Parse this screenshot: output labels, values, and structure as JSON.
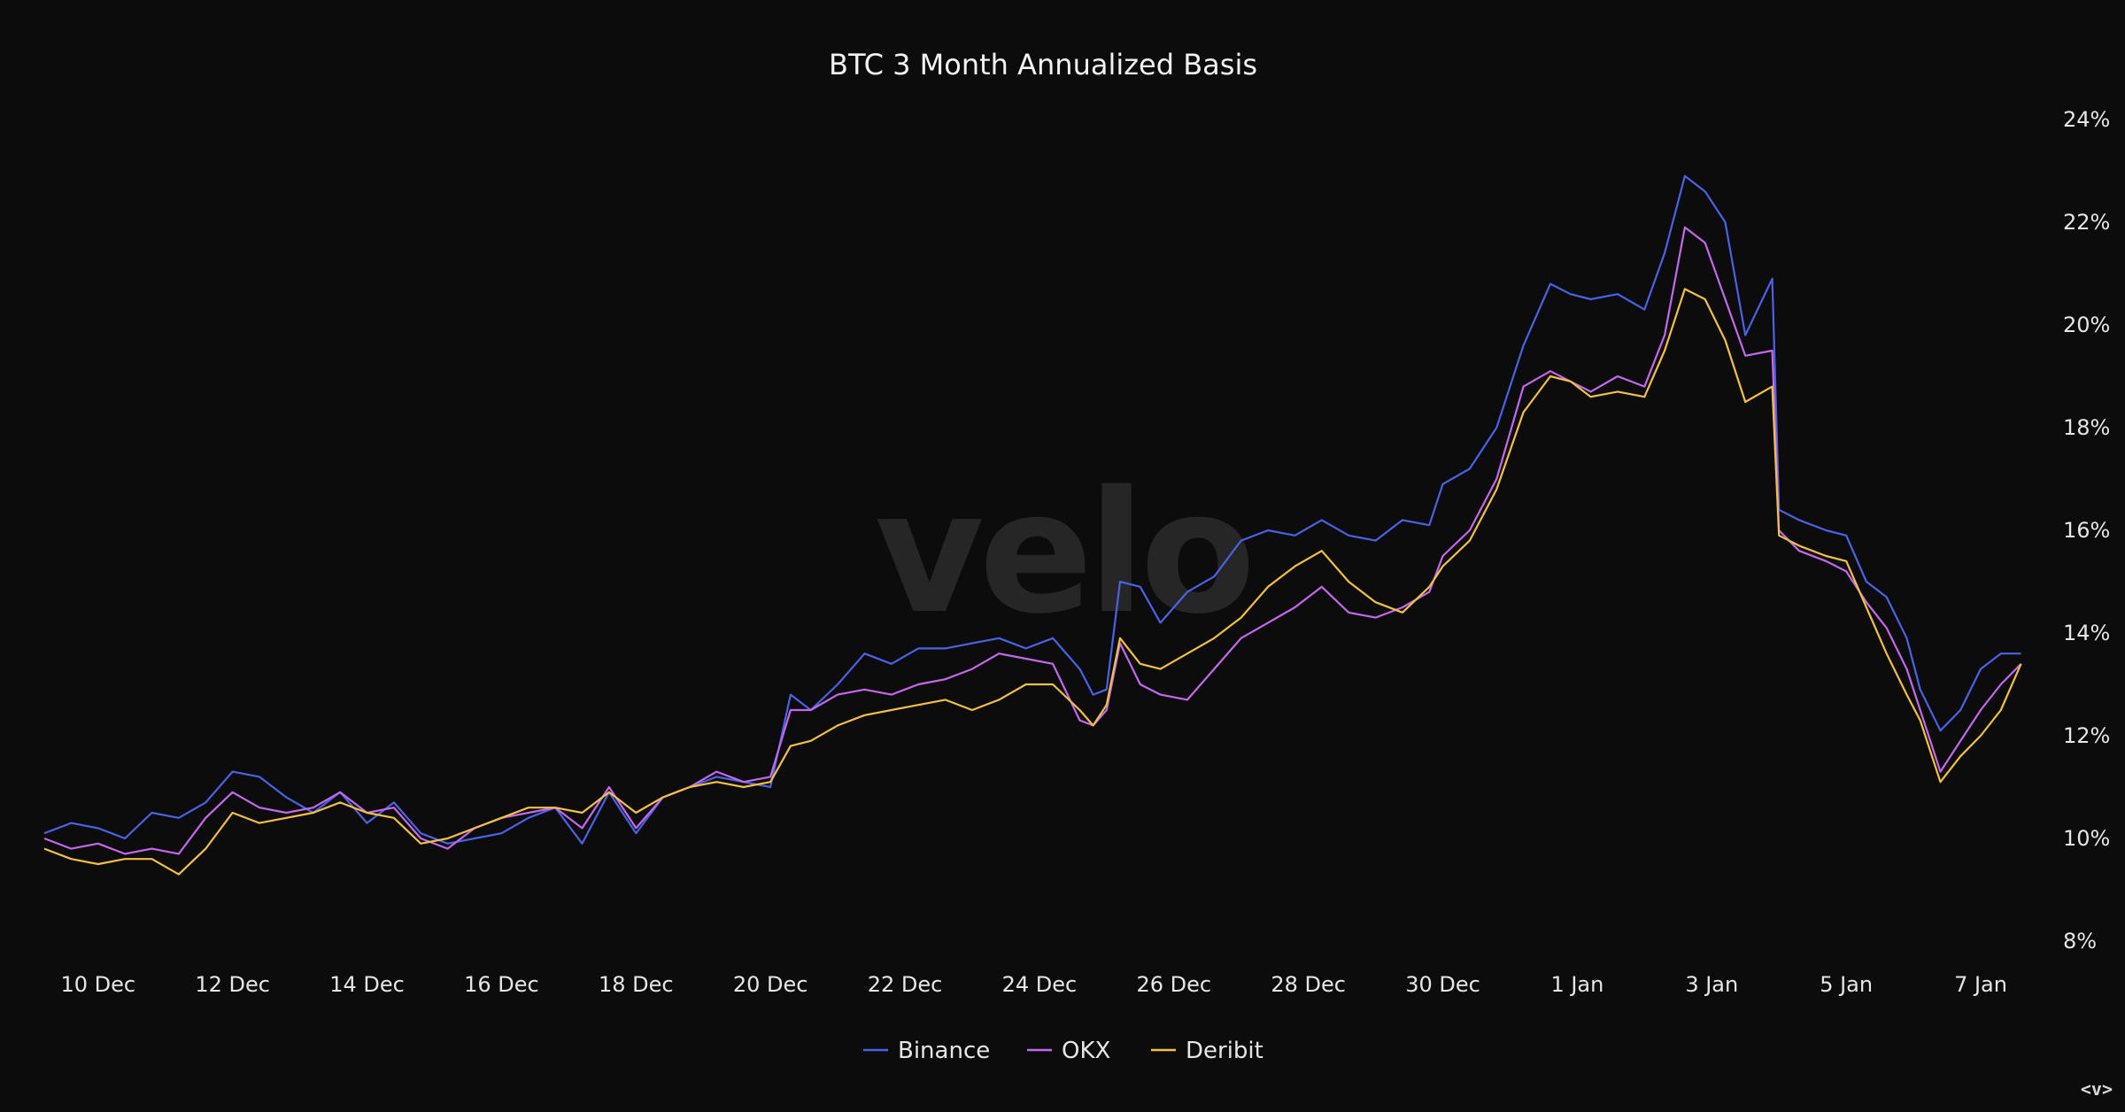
{
  "nav_hint": "<v>",
  "chart_data": {
    "type": "line",
    "title": "BTC 3 Month Annualized Basis",
    "watermark": "velo",
    "xlabel": "",
    "ylabel": "",
    "ylim": [
      8,
      24
    ],
    "yaxis_position": "right",
    "yticks": [
      8,
      10,
      12,
      14,
      16,
      18,
      20,
      22,
      24
    ],
    "ytick_labels": [
      "8%",
      "10%",
      "12%",
      "14%",
      "16%",
      "18%",
      "20%",
      "22%",
      "24%"
    ],
    "xlim": [
      9.2,
      38.5
    ],
    "xticks": [
      10,
      12,
      14,
      16,
      18,
      20,
      22,
      24,
      26,
      28,
      30,
      32,
      34,
      36,
      38
    ],
    "xtick_labels": [
      "10 Dec",
      "12 Dec",
      "14 Dec",
      "16 Dec",
      "18 Dec",
      "20 Dec",
      "22 Dec",
      "24 Dec",
      "26 Dec",
      "28 Dec",
      "30 Dec",
      "1 Jan",
      "3 Jan",
      "5 Jan",
      "7 Jan"
    ],
    "x_unit": "day of December (32 = 1 Jan)",
    "grid": false,
    "legend_position": "bottom-center",
    "series": [
      {
        "name": "Binance",
        "color": "#4a63e6",
        "points": [
          [
            9.2,
            10.1
          ],
          [
            9.6,
            10.3
          ],
          [
            10.0,
            10.2
          ],
          [
            10.4,
            10.0
          ],
          [
            10.8,
            10.5
          ],
          [
            11.2,
            10.4
          ],
          [
            11.6,
            10.7
          ],
          [
            12.0,
            11.3
          ],
          [
            12.4,
            11.2
          ],
          [
            12.8,
            10.8
          ],
          [
            13.2,
            10.5
          ],
          [
            13.6,
            10.9
          ],
          [
            14.0,
            10.3
          ],
          [
            14.4,
            10.7
          ],
          [
            14.8,
            10.1
          ],
          [
            15.2,
            9.9
          ],
          [
            15.6,
            10.0
          ],
          [
            16.0,
            10.1
          ],
          [
            16.4,
            10.4
          ],
          [
            16.8,
            10.6
          ],
          [
            17.2,
            9.9
          ],
          [
            17.6,
            10.9
          ],
          [
            18.0,
            10.1
          ],
          [
            18.4,
            10.8
          ],
          [
            18.8,
            11.0
          ],
          [
            19.2,
            11.2
          ],
          [
            19.6,
            11.1
          ],
          [
            20.0,
            11.0
          ],
          [
            20.3,
            12.8
          ],
          [
            20.6,
            12.5
          ],
          [
            21.0,
            13.0
          ],
          [
            21.4,
            13.6
          ],
          [
            21.8,
            13.4
          ],
          [
            22.2,
            13.7
          ],
          [
            22.6,
            13.7
          ],
          [
            23.0,
            13.8
          ],
          [
            23.4,
            13.9
          ],
          [
            23.8,
            13.7
          ],
          [
            24.2,
            13.9
          ],
          [
            24.6,
            13.3
          ],
          [
            24.8,
            12.8
          ],
          [
            25.0,
            12.9
          ],
          [
            25.2,
            15.0
          ],
          [
            25.5,
            14.9
          ],
          [
            25.8,
            14.2
          ],
          [
            26.2,
            14.8
          ],
          [
            26.6,
            15.1
          ],
          [
            27.0,
            15.8
          ],
          [
            27.4,
            16.0
          ],
          [
            27.8,
            15.9
          ],
          [
            28.2,
            16.2
          ],
          [
            28.6,
            15.9
          ],
          [
            29.0,
            15.8
          ],
          [
            29.4,
            16.2
          ],
          [
            29.8,
            16.1
          ],
          [
            30.0,
            16.9
          ],
          [
            30.4,
            17.2
          ],
          [
            30.8,
            18.0
          ],
          [
            31.2,
            19.6
          ],
          [
            31.6,
            20.8
          ],
          [
            31.9,
            20.6
          ],
          [
            32.2,
            20.5
          ],
          [
            32.6,
            20.6
          ],
          [
            33.0,
            20.3
          ],
          [
            33.3,
            21.4
          ],
          [
            33.6,
            22.9
          ],
          [
            33.9,
            22.6
          ],
          [
            34.2,
            22.0
          ],
          [
            34.5,
            19.8
          ],
          [
            34.9,
            20.9
          ],
          [
            35.0,
            16.4
          ],
          [
            35.3,
            16.2
          ],
          [
            35.7,
            16.0
          ],
          [
            36.0,
            15.9
          ],
          [
            36.3,
            15.0
          ],
          [
            36.6,
            14.7
          ],
          [
            36.9,
            13.9
          ],
          [
            37.1,
            12.9
          ],
          [
            37.4,
            12.1
          ],
          [
            37.7,
            12.5
          ],
          [
            38.0,
            13.3
          ],
          [
            38.3,
            13.6
          ],
          [
            38.6,
            13.6
          ]
        ]
      },
      {
        "name": "OKX",
        "color": "#c468ee",
        "points": [
          [
            9.2,
            10.0
          ],
          [
            9.6,
            9.8
          ],
          [
            10.0,
            9.9
          ],
          [
            10.4,
            9.7
          ],
          [
            10.8,
            9.8
          ],
          [
            11.2,
            9.7
          ],
          [
            11.6,
            10.4
          ],
          [
            12.0,
            10.9
          ],
          [
            12.4,
            10.6
          ],
          [
            12.8,
            10.5
          ],
          [
            13.2,
            10.6
          ],
          [
            13.6,
            10.9
          ],
          [
            14.0,
            10.5
          ],
          [
            14.4,
            10.6
          ],
          [
            14.8,
            10.0
          ],
          [
            15.2,
            9.8
          ],
          [
            15.6,
            10.2
          ],
          [
            16.0,
            10.4
          ],
          [
            16.4,
            10.5
          ],
          [
            16.8,
            10.6
          ],
          [
            17.2,
            10.2
          ],
          [
            17.6,
            11.0
          ],
          [
            18.0,
            10.2
          ],
          [
            18.4,
            10.8
          ],
          [
            18.8,
            11.0
          ],
          [
            19.2,
            11.3
          ],
          [
            19.6,
            11.1
          ],
          [
            20.0,
            11.2
          ],
          [
            20.3,
            12.5
          ],
          [
            20.6,
            12.5
          ],
          [
            21.0,
            12.8
          ],
          [
            21.4,
            12.9
          ],
          [
            21.8,
            12.8
          ],
          [
            22.2,
            13.0
          ],
          [
            22.6,
            13.1
          ],
          [
            23.0,
            13.3
          ],
          [
            23.4,
            13.6
          ],
          [
            23.8,
            13.5
          ],
          [
            24.2,
            13.4
          ],
          [
            24.6,
            12.3
          ],
          [
            24.8,
            12.2
          ],
          [
            25.0,
            12.5
          ],
          [
            25.2,
            13.8
          ],
          [
            25.5,
            13.0
          ],
          [
            25.8,
            12.8
          ],
          [
            26.2,
            12.7
          ],
          [
            26.6,
            13.3
          ],
          [
            27.0,
            13.9
          ],
          [
            27.4,
            14.2
          ],
          [
            27.8,
            14.5
          ],
          [
            28.2,
            14.9
          ],
          [
            28.6,
            14.4
          ],
          [
            29.0,
            14.3
          ],
          [
            29.4,
            14.5
          ],
          [
            29.8,
            14.8
          ],
          [
            30.0,
            15.5
          ],
          [
            30.4,
            16.0
          ],
          [
            30.8,
            17.0
          ],
          [
            31.2,
            18.8
          ],
          [
            31.6,
            19.1
          ],
          [
            31.9,
            18.9
          ],
          [
            32.2,
            18.7
          ],
          [
            32.6,
            19.0
          ],
          [
            33.0,
            18.8
          ],
          [
            33.3,
            19.8
          ],
          [
            33.6,
            21.9
          ],
          [
            33.9,
            21.6
          ],
          [
            34.2,
            20.5
          ],
          [
            34.5,
            19.4
          ],
          [
            34.9,
            19.5
          ],
          [
            35.0,
            16.0
          ],
          [
            35.3,
            15.6
          ],
          [
            35.7,
            15.4
          ],
          [
            36.0,
            15.2
          ],
          [
            36.3,
            14.6
          ],
          [
            36.6,
            14.1
          ],
          [
            36.9,
            13.3
          ],
          [
            37.1,
            12.5
          ],
          [
            37.4,
            11.3
          ],
          [
            37.7,
            11.9
          ],
          [
            38.0,
            12.5
          ],
          [
            38.3,
            13.0
          ],
          [
            38.6,
            13.4
          ]
        ]
      },
      {
        "name": "Deribit",
        "color": "#f2c141",
        "points": [
          [
            9.2,
            9.8
          ],
          [
            9.6,
            9.6
          ],
          [
            10.0,
            9.5
          ],
          [
            10.4,
            9.6
          ],
          [
            10.8,
            9.6
          ],
          [
            11.2,
            9.3
          ],
          [
            11.6,
            9.8
          ],
          [
            12.0,
            10.5
          ],
          [
            12.4,
            10.3
          ],
          [
            12.8,
            10.4
          ],
          [
            13.2,
            10.5
          ],
          [
            13.6,
            10.7
          ],
          [
            14.0,
            10.5
          ],
          [
            14.4,
            10.4
          ],
          [
            14.8,
            9.9
          ],
          [
            15.2,
            10.0
          ],
          [
            15.6,
            10.2
          ],
          [
            16.0,
            10.4
          ],
          [
            16.4,
            10.6
          ],
          [
            16.8,
            10.6
          ],
          [
            17.2,
            10.5
          ],
          [
            17.6,
            10.9
          ],
          [
            18.0,
            10.5
          ],
          [
            18.4,
            10.8
          ],
          [
            18.8,
            11.0
          ],
          [
            19.2,
            11.1
          ],
          [
            19.6,
            11.0
          ],
          [
            20.0,
            11.1
          ],
          [
            20.3,
            11.8
          ],
          [
            20.6,
            11.9
          ],
          [
            21.0,
            12.2
          ],
          [
            21.4,
            12.4
          ],
          [
            21.8,
            12.5
          ],
          [
            22.2,
            12.6
          ],
          [
            22.6,
            12.7
          ],
          [
            23.0,
            12.5
          ],
          [
            23.4,
            12.7
          ],
          [
            23.8,
            13.0
          ],
          [
            24.2,
            13.0
          ],
          [
            24.6,
            12.5
          ],
          [
            24.8,
            12.2
          ],
          [
            25.0,
            12.6
          ],
          [
            25.2,
            13.9
          ],
          [
            25.5,
            13.4
          ],
          [
            25.8,
            13.3
          ],
          [
            26.2,
            13.6
          ],
          [
            26.6,
            13.9
          ],
          [
            27.0,
            14.3
          ],
          [
            27.4,
            14.9
          ],
          [
            27.8,
            15.3
          ],
          [
            28.2,
            15.6
          ],
          [
            28.6,
            15.0
          ],
          [
            29.0,
            14.6
          ],
          [
            29.4,
            14.4
          ],
          [
            29.8,
            14.9
          ],
          [
            30.0,
            15.3
          ],
          [
            30.4,
            15.8
          ],
          [
            30.8,
            16.8
          ],
          [
            31.2,
            18.3
          ],
          [
            31.6,
            19.0
          ],
          [
            31.9,
            18.9
          ],
          [
            32.2,
            18.6
          ],
          [
            32.6,
            18.7
          ],
          [
            33.0,
            18.6
          ],
          [
            33.3,
            19.5
          ],
          [
            33.6,
            20.7
          ],
          [
            33.9,
            20.5
          ],
          [
            34.2,
            19.7
          ],
          [
            34.5,
            18.5
          ],
          [
            34.9,
            18.8
          ],
          [
            35.0,
            15.9
          ],
          [
            35.3,
            15.7
          ],
          [
            35.7,
            15.5
          ],
          [
            36.0,
            15.4
          ],
          [
            36.3,
            14.5
          ],
          [
            36.6,
            13.6
          ],
          [
            36.9,
            12.8
          ],
          [
            37.1,
            12.3
          ],
          [
            37.4,
            11.1
          ],
          [
            37.7,
            11.6
          ],
          [
            38.0,
            12.0
          ],
          [
            38.3,
            12.5
          ],
          [
            38.6,
            13.4
          ]
        ]
      }
    ]
  }
}
